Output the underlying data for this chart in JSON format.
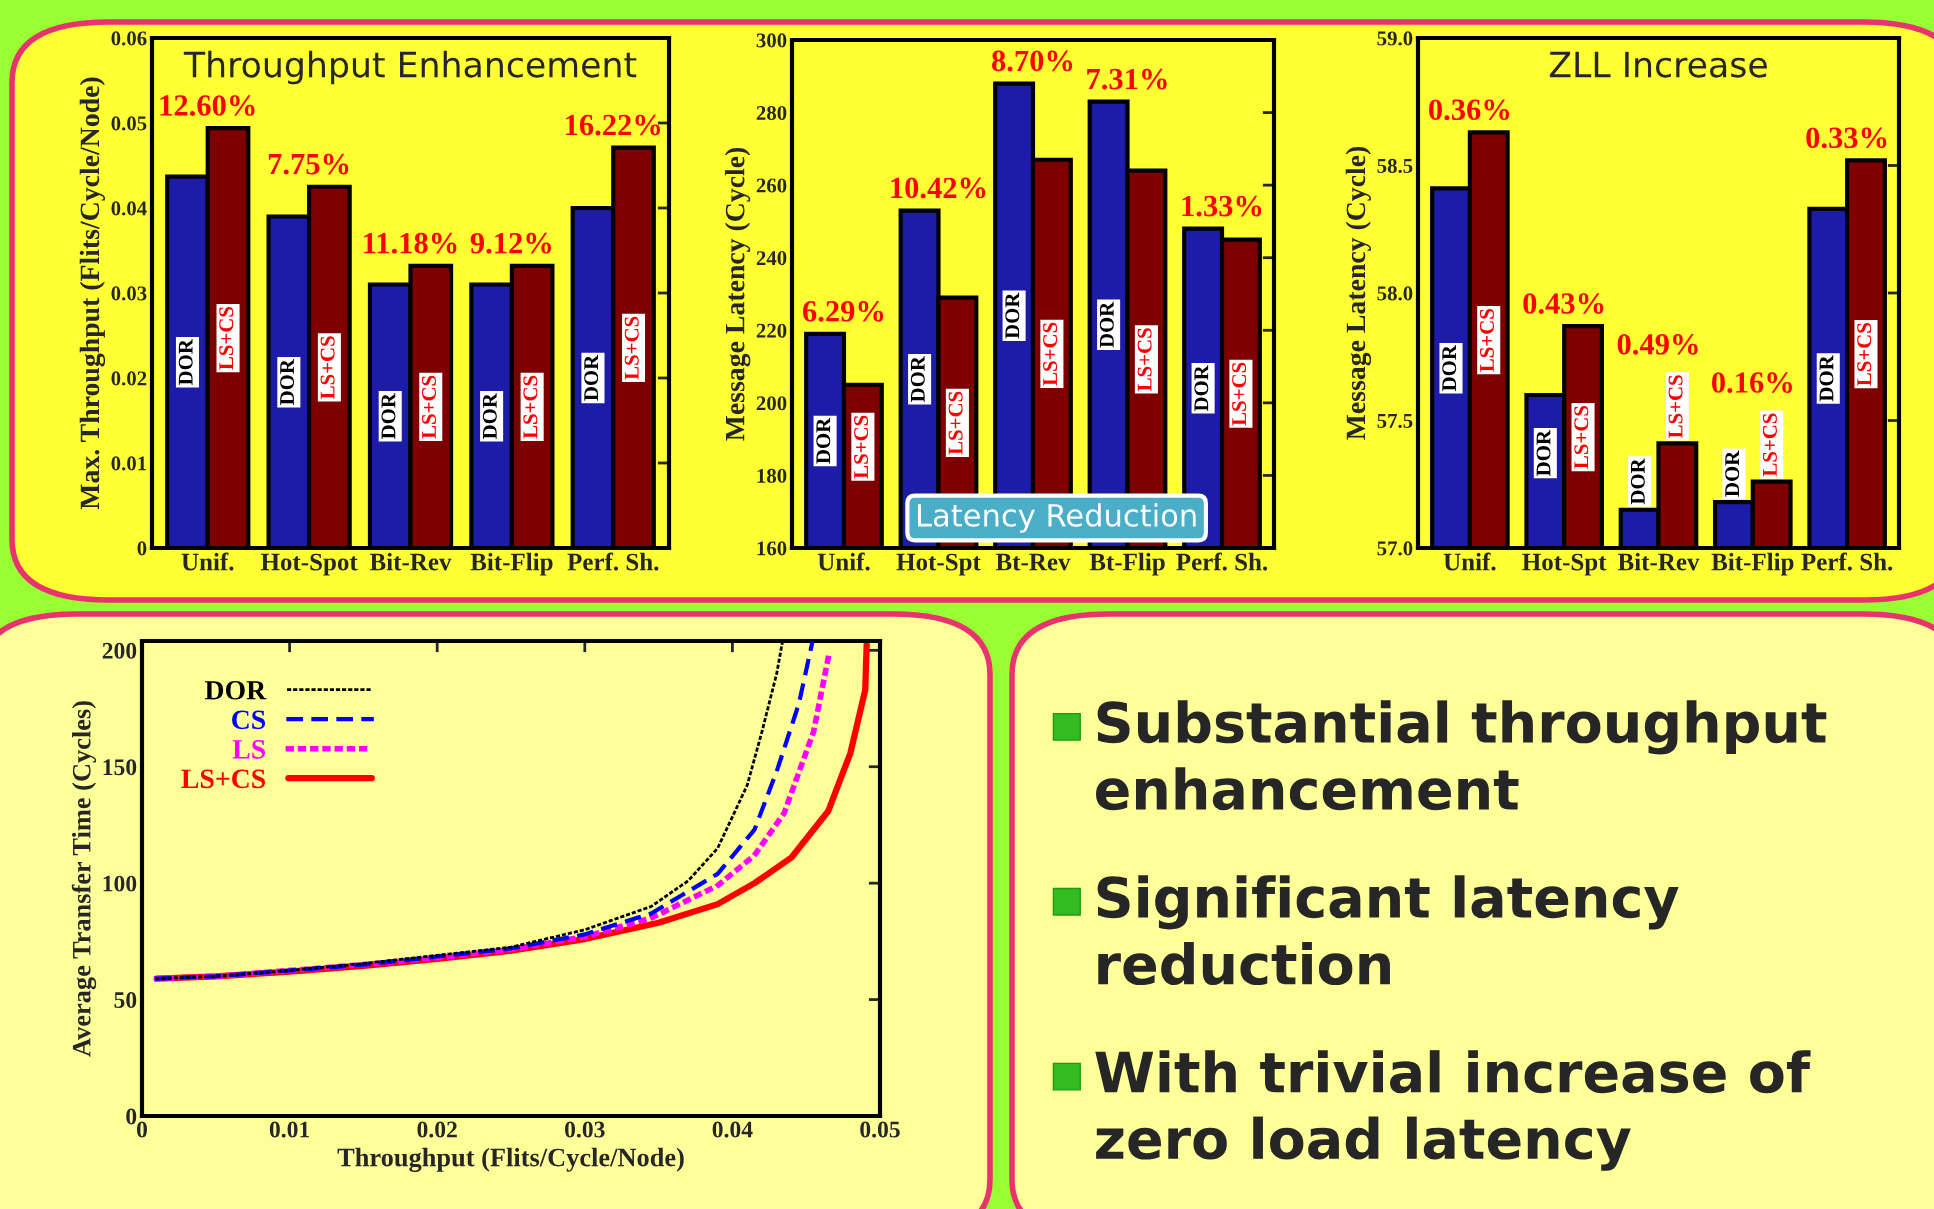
{
  "chart_data": [
    {
      "type": "bar",
      "title": "Throughput Enhancement",
      "ylabel": "Max. Throughput (Flits/Cycle/Node)",
      "categories": [
        "Unif.",
        "Hot-Spot",
        "Bit-Rev",
        "Bit-Flip",
        "Perf. Sh."
      ],
      "series": [
        {
          "name": "DOR",
          "color": "#1c1ca8",
          "values": [
            0.0437,
            0.039,
            0.031,
            0.031,
            0.04
          ]
        },
        {
          "name": "LS+CS",
          "color": "#7f0000",
          "values": [
            0.0494,
            0.0425,
            0.0332,
            0.0332,
            0.0471
          ]
        }
      ],
      "ylim": [
        0,
        0.06
      ],
      "yticks": [
        0,
        0.01,
        0.02,
        0.03,
        0.04,
        0.05,
        0.06
      ],
      "annotations": [
        "12.60%",
        "7.75%",
        "11.18%",
        "9.12%",
        "16.22%"
      ]
    },
    {
      "type": "bar",
      "title": "Latency Reduction",
      "ylabel": "Message Latency (Cycle)",
      "categories": [
        "Unif.",
        "Hot-Spt",
        "Bt-Rev",
        "Bt-Flip",
        "Perf. Sh."
      ],
      "series": [
        {
          "name": "DOR",
          "color": "#1c1ca8",
          "values": [
            219,
            253,
            288,
            283,
            248
          ]
        },
        {
          "name": "LS+CS",
          "color": "#7f0000",
          "values": [
            205,
            229,
            267,
            264,
            245
          ]
        }
      ],
      "ylim": [
        160,
        300
      ],
      "yticks": [
        160,
        180,
        200,
        220,
        240,
        260,
        280,
        300
      ],
      "annotations": [
        "6.29%",
        "10.42%",
        "8.70%",
        "7.31%",
        "1.33%"
      ]
    },
    {
      "type": "bar",
      "title": "ZLL Increase",
      "ylabel": "Message Latency (Cycle)",
      "categories": [
        "Unif.",
        "Hot-Spt",
        "Bit-Rev",
        "Bit-Flip",
        "Perf. Sh."
      ],
      "series": [
        {
          "name": "DOR",
          "color": "#1c1ca8",
          "values": [
            58.41,
            57.6,
            57.15,
            57.18,
            58.33
          ]
        },
        {
          "name": "LS+CS",
          "color": "#7f0000",
          "values": [
            58.63,
            57.87,
            57.41,
            57.26,
            58.52
          ]
        }
      ],
      "ylim": [
        57.0,
        59.0
      ],
      "yticks": [
        {
          "value": 57,
          "label": "57.0"
        },
        57.5,
        {
          "value": 58,
          "label": "58.0"
        },
        58.5,
        {
          "value": 59,
          "label": "59.0"
        }
      ],
      "annotations": [
        "0.36%",
        "0.43%",
        "0.49%",
        "0.16%",
        "0.33%"
      ]
    },
    {
      "type": "line",
      "xlabel": "Throughput (Flits/Cycle/Node)",
      "ylabel": "Average Transfer Time (Cycles)",
      "series": [
        {
          "name": "DOR",
          "color": "#000000",
          "line_style": "dotted",
          "x": [
            0.001,
            0.005,
            0.01,
            0.015,
            0.02,
            0.025,
            0.03,
            0.0345,
            0.037,
            0.039,
            0.041,
            0.042,
            0.043,
            0.0434
          ],
          "values": [
            59,
            60,
            62.5,
            65.5,
            69,
            72.5,
            80,
            90,
            101,
            115,
            142,
            165,
            190,
            204
          ]
        },
        {
          "name": "CS",
          "color": "#0000ff",
          "line_style": "dashed",
          "x": [
            0.001,
            0.005,
            0.01,
            0.015,
            0.02,
            0.025,
            0.03,
            0.0345,
            0.039,
            0.0415,
            0.043,
            0.0445,
            0.0454
          ],
          "values": [
            59,
            60,
            62.5,
            65,
            68.5,
            72,
            78,
            87,
            104,
            123,
            148,
            177,
            203
          ]
        },
        {
          "name": "LS",
          "color": "#ff00ff",
          "line_style": "dotted",
          "x": [
            0.001,
            0.005,
            0.01,
            0.015,
            0.02,
            0.025,
            0.03,
            0.0345,
            0.039,
            0.0415,
            0.0435,
            0.0455,
            0.0465
          ],
          "values": [
            59,
            60,
            62.5,
            65,
            68,
            71.5,
            77,
            85,
            99,
            112,
            130,
            165,
            197
          ]
        },
        {
          "name": "LS+CS",
          "color": "#ff0000",
          "line_style": "solid",
          "x": [
            0.001,
            0.005,
            0.01,
            0.015,
            0.02,
            0.025,
            0.03,
            0.035,
            0.039,
            0.0415,
            0.044,
            0.0465,
            0.048,
            0.049,
            0.0491
          ],
          "values": [
            59,
            60,
            62,
            64.5,
            67.5,
            71,
            76,
            83,
            91,
            100,
            111,
            131,
            156,
            183,
            203
          ]
        }
      ],
      "xlim": [
        0,
        0.05
      ],
      "xticks": [
        0,
        0.01,
        0.02,
        0.03,
        0.04,
        0.05
      ],
      "ylim": [
        0,
        204
      ],
      "yticks": [
        0,
        50,
        100,
        150,
        200
      ],
      "legend": "top left"
    },
    {
      "type": "other",
      "annotations": [
        "Substantial throughput enhancement",
        "Significant latency reduction",
        "With trivial increase of zero load latency"
      ]
    }
  ]
}
